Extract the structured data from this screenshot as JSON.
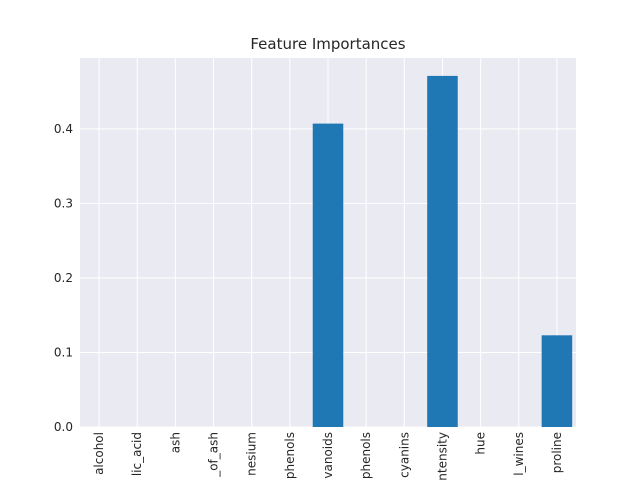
{
  "chart_data": {
    "type": "bar",
    "title": "Feature Importances",
    "xlabel": "",
    "ylabel": "",
    "categories": [
      "alcohol",
      "lic_acid",
      "ash",
      "_of_ash",
      "nesium",
      "phenols",
      "vanoids",
      "phenols",
      "cyanins",
      "ntensity",
      "hue",
      "l_wines",
      "proline"
    ],
    "values": [
      0,
      0,
      0,
      0,
      0,
      0,
      0.407,
      0,
      0,
      0.471,
      0,
      0,
      0.123
    ],
    "yticks": [
      "0.0",
      "0.1",
      "0.2",
      "0.3",
      "0.4"
    ],
    "ylim": [
      0,
      0.495
    ],
    "grid": true,
    "colors": {
      "bar": "#1f77b4",
      "plot_background": "#eaeaf2",
      "grid": "#ffffff",
      "text": "#262626"
    }
  }
}
